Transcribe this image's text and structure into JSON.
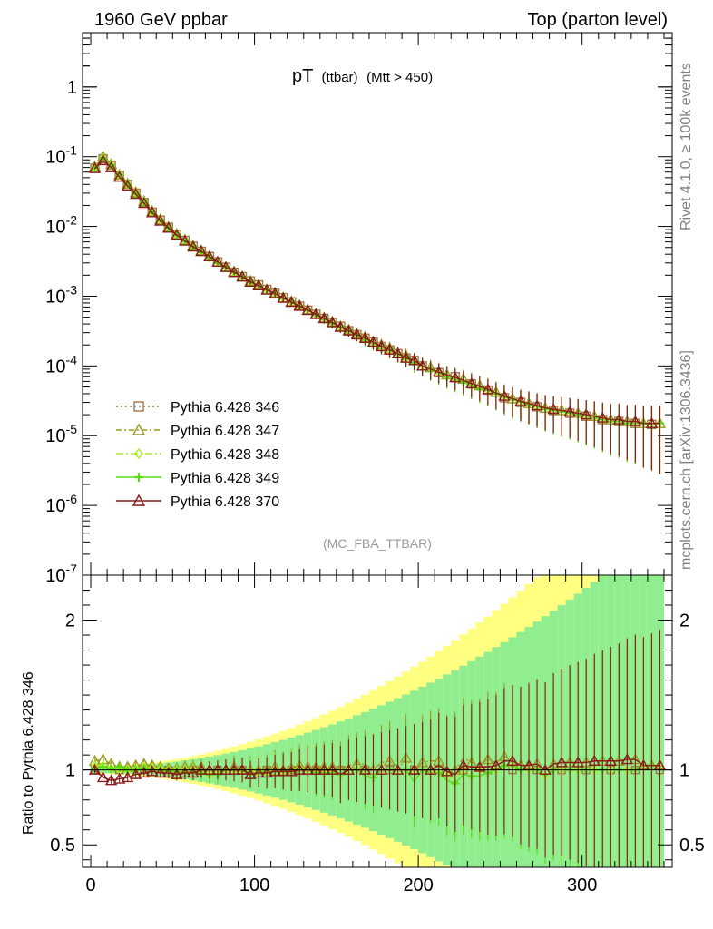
{
  "header": {
    "left": "1960 GeV ppbar",
    "right": "Top (parton level)"
  },
  "title": {
    "main": "pT",
    "sub": "(ttbar)",
    "cut": "(Mtt > 450)"
  },
  "side_labels": {
    "top": "Rivet 4.1.0, ≥ 100k events",
    "bottom": "mcplots.cern.ch [arXiv:1306.3436]"
  },
  "watermark": "(MC_FBA_TTBAR)",
  "ratio_ylabel": "Ratio to Pythia 6.428 346",
  "colors": {
    "s346": "#a0784a",
    "s347": "#9a9a22",
    "s348": "#aaee22",
    "s349": "#55dd11",
    "s370": "#8b1a1a",
    "band_yellow": "#ffff80",
    "band_green": "#90ee90"
  },
  "chart_data": [
    {
      "type": "line",
      "yscale": "log",
      "xlim": [
        -5,
        355
      ],
      "ylim": [
        1e-07,
        6
      ],
      "y_tick_labels": [
        "10^-7",
        "10^-6",
        "10^-5",
        "10^-4",
        "10^-3",
        "10^-2",
        "10^-1",
        "1"
      ],
      "x": [
        2.5,
        7.5,
        12.5,
        17.5,
        22.5,
        27.5,
        32.5,
        37.5,
        42.5,
        47.5,
        52.5,
        57.5,
        62.5,
        67.5,
        72.5,
        77.5,
        82.5,
        87.5,
        92.5,
        97.5,
        102.5,
        107.5,
        112.5,
        117.5,
        122.5,
        127.5,
        132.5,
        137.5,
        142.5,
        147.5,
        152.5,
        157.5,
        162.5,
        167.5,
        172.5,
        177.5,
        182.5,
        187.5,
        192.5,
        197.5,
        202.5,
        207.5,
        212.5,
        217.5,
        222.5,
        227.5,
        232.5,
        237.5,
        242.5,
        247.5,
        252.5,
        257.5,
        262.5,
        267.5,
        272.5,
        277.5,
        282.5,
        287.5,
        292.5,
        297.5,
        302.5,
        307.5,
        312.5,
        317.5,
        322.5,
        327.5,
        332.5,
        337.5,
        342.5,
        347.5
      ],
      "series": [
        {
          "name": "Pythia 6.428 346",
          "marker": "square",
          "dash": "2,3",
          "values": [
            0.068,
            0.093,
            0.075,
            0.054,
            0.04,
            0.03,
            0.022,
            0.016,
            0.0123,
            0.0097,
            0.0077,
            0.0063,
            0.0052,
            0.0044,
            0.0037,
            0.0031,
            0.0026,
            0.0022,
            0.0019,
            0.00165,
            0.00145,
            0.00125,
            0.0011,
            0.00095,
            0.00083,
            0.00072,
            0.00063,
            0.00055,
            0.00048,
            0.00042,
            0.00037,
            0.00032,
            0.00028,
            0.00025,
            0.00022,
            0.00019,
            0.00017,
            0.00015,
            0.00013,
            0.00012,
            0.0001,
            9e-05,
            8e-05,
            7.5e-05,
            7e-05,
            6e-05,
            5.5e-05,
            5e-05,
            4.5e-05,
            4e-05,
            3.5e-05,
            3.2e-05,
            3e-05,
            2.8e-05,
            2.6e-05,
            2.5e-05,
            2.3e-05,
            2.2e-05,
            2.1e-05,
            2e-05,
            1.9e-05,
            1.8e-05,
            1.7e-05,
            1.6e-05,
            1.6e-05,
            1.5e-05,
            1.5e-05,
            1.45e-05,
            1.45e-05,
            1.45e-05
          ]
        },
        {
          "name": "Pythia 6.428 347",
          "marker": "triangle",
          "dash": "6,3,2,3",
          "values": [
            0.072,
            0.1,
            0.078,
            0.055,
            0.041,
            0.031,
            0.023,
            0.0165,
            0.0126,
            0.0098,
            0.0078,
            0.0064,
            0.0053,
            0.0045,
            0.0037,
            0.0031,
            0.0026,
            0.00225,
            0.0019,
            0.00165,
            0.00145,
            0.00125,
            0.00112,
            0.00095,
            0.00084,
            0.00074,
            0.00064,
            0.00056,
            0.00049,
            0.00043,
            0.00037,
            0.00033,
            0.00029,
            0.00026,
            0.00022,
            0.0002,
            0.00018,
            0.00015,
            0.00014,
            0.00012,
            0.000105,
            9.5e-05,
            8.5e-05,
            7.5e-05,
            7e-05,
            6.5e-05,
            5.8e-05,
            5.2e-05,
            4.8e-05,
            4.2e-05,
            3.8e-05,
            3.4e-05,
            3.1e-05,
            2.9e-05,
            2.7e-05,
            2.5e-05,
            2.4e-05,
            2.3e-05,
            2.2e-05,
            2.1e-05,
            2e-05,
            1.9e-05,
            1.8e-05,
            1.7e-05,
            1.7e-05,
            1.6e-05,
            1.6e-05,
            1.5e-05,
            1.5e-05,
            1.5e-05
          ]
        },
        {
          "name": "Pythia 6.428 348",
          "marker": "diamond",
          "dash": "8,3,2,3",
          "values": [
            0.07,
            0.096,
            0.076,
            0.054,
            0.04,
            0.03,
            0.0225,
            0.0162,
            0.0124,
            0.0097,
            0.0077,
            0.0063,
            0.0052,
            0.0044,
            0.0036,
            0.0031,
            0.0026,
            0.0022,
            0.0019,
            0.00163,
            0.00143,
            0.00124,
            0.0011,
            0.00094,
            0.00083,
            0.00073,
            0.00063,
            0.00055,
            0.00048,
            0.00042,
            0.00036,
            0.00032,
            0.00028,
            0.00025,
            0.00022,
            0.00019,
            0.00017,
            0.00015,
            0.00013,
            0.00012,
            0.0001,
            9e-05,
            8e-05,
            7.2e-05,
            6.6e-05,
            6e-05,
            5.5e-05,
            5e-05,
            4.5e-05,
            4e-05,
            3.6e-05,
            3.3e-05,
            3e-05,
            2.8e-05,
            2.6e-05,
            2.4e-05,
            2.3e-05,
            2.2e-05,
            2.1e-05,
            2e-05,
            1.9e-05,
            1.8e-05,
            1.7e-05,
            1.6e-05,
            1.6e-05,
            1.5e-05,
            1.5e-05,
            1.5e-05,
            1.5e-05,
            1.5e-05
          ]
        },
        {
          "name": "Pythia 6.428 349",
          "marker": "plus",
          "dash": "",
          "values": [
            0.069,
            0.095,
            0.076,
            0.055,
            0.04,
            0.03,
            0.0222,
            0.016,
            0.0123,
            0.0096,
            0.0076,
            0.0062,
            0.0051,
            0.0043,
            0.0036,
            0.003,
            0.0026,
            0.0022,
            0.0019,
            0.00162,
            0.00142,
            0.00124,
            0.00109,
            0.00094,
            0.00082,
            0.00072,
            0.00063,
            0.00054,
            0.00047,
            0.00041,
            0.00036,
            0.00032,
            0.00028,
            0.00024,
            0.00021,
            0.00019,
            0.00017,
            0.00015,
            0.00013,
            0.00011,
            0.0001,
            8.8e-05,
            7.8e-05,
            7e-05,
            6.4e-05,
            5.8e-05,
            5.3e-05,
            4.8e-05,
            4.4e-05,
            4e-05,
            3.6e-05,
            3.3e-05,
            3e-05,
            2.8e-05,
            2.6e-05,
            2.4e-05,
            2.3e-05,
            2.2e-05,
            2.1e-05,
            2e-05,
            1.9e-05,
            1.8e-05,
            1.7e-05,
            1.6e-05,
            1.6e-05,
            1.5e-05,
            1.5e-05,
            1.5e-05,
            1.5e-05,
            1.5e-05
          ]
        },
        {
          "name": "Pythia 6.428 370",
          "marker": "triangle",
          "dash": "",
          "values": [
            0.068,
            0.088,
            0.07,
            0.051,
            0.038,
            0.029,
            0.0215,
            0.0158,
            0.012,
            0.0095,
            0.0075,
            0.0062,
            0.0051,
            0.0044,
            0.0037,
            0.0031,
            0.0026,
            0.0022,
            0.0019,
            0.0016,
            0.00142,
            0.00123,
            0.00109,
            0.00094,
            0.00082,
            0.00072,
            0.00063,
            0.00055,
            0.00048,
            0.00042,
            0.00036,
            0.00032,
            0.00028,
            0.00025,
            0.00022,
            0.00019,
            0.00017,
            0.00015,
            0.00013,
            0.00012,
            0.0001,
            9e-05,
            8.2e-05,
            7.4e-05,
            6.8e-05,
            6.2e-05,
            5.6e-05,
            5.1e-05,
            4.6e-05,
            4.1e-05,
            3.7e-05,
            3.4e-05,
            3.1e-05,
            2.9e-05,
            2.7e-05,
            2.5e-05,
            2.4e-05,
            2.3e-05,
            2.2e-05,
            2.1e-05,
            2e-05,
            1.9e-05,
            1.8e-05,
            1.7e-05,
            1.7e-05,
            1.6e-05,
            1.6e-05,
            1.5e-05,
            1.5e-05,
            1.5e-05
          ]
        }
      ]
    },
    {
      "type": "line",
      "ylabel": "Ratio to Pythia 6.428 346",
      "xlim": [
        -5,
        355
      ],
      "ylim": [
        0.35,
        2.3
      ],
      "x_tick_labels": [
        "0",
        "100",
        "200",
        "300"
      ],
      "y_tick_labels": [
        "0.5",
        "1",
        "2"
      ],
      "reference": 1,
      "x": [
        2.5,
        7.5,
        12.5,
        17.5,
        22.5,
        27.5,
        32.5,
        37.5,
        42.5,
        47.5,
        52.5,
        57.5,
        62.5,
        67.5,
        72.5,
        77.5,
        82.5,
        87.5,
        92.5,
        97.5,
        102.5,
        107.5,
        112.5,
        117.5,
        122.5,
        127.5,
        132.5,
        137.5,
        142.5,
        147.5,
        152.5,
        157.5,
        162.5,
        167.5,
        172.5,
        177.5,
        182.5,
        187.5,
        192.5,
        197.5,
        202.5,
        207.5,
        212.5,
        217.5,
        222.5,
        227.5,
        232.5,
        237.5,
        242.5,
        247.5,
        252.5,
        257.5,
        262.5,
        267.5,
        272.5,
        277.5,
        282.5,
        287.5,
        292.5,
        297.5,
        302.5,
        307.5,
        312.5,
        317.5,
        322.5,
        327.5,
        332.5,
        337.5,
        342.5,
        347.5
      ],
      "series": [
        {
          "name": "Pythia 6.428 347",
          "values": [
            1.06,
            1.07,
            1.04,
            1.02,
            1.02,
            1.03,
            1.04,
            1.03,
            1.02,
            1.01,
            1.01,
            1.02,
            1.02,
            1.02,
            1.0,
            1.0,
            1.0,
            1.02,
            1.0,
            1.0,
            1.0,
            1.0,
            1.02,
            1.0,
            1.01,
            1.03,
            1.02,
            1.02,
            1.02,
            1.02,
            1.0,
            1.03,
            1.04,
            1.04,
            1.0,
            1.05,
            1.06,
            1.0,
            1.08,
            1.0,
            1.05,
            1.06,
            1.06,
            1.0,
            1.0,
            1.08,
            1.05,
            1.04,
            1.07,
            1.05,
            1.09,
            1.06,
            1.03,
            1.04,
            1.04,
            1.0,
            1.04,
            1.05,
            1.05,
            1.05,
            1.05,
            1.06,
            1.06,
            1.06,
            1.06,
            1.07,
            1.07,
            1.03,
            1.03,
            1.03
          ]
        },
        {
          "name": "Pythia 6.428 348",
          "values": [
            1.03,
            1.03,
            1.01,
            1.0,
            1.0,
            1.0,
            1.02,
            1.01,
            1.01,
            1.0,
            1.0,
            1.0,
            1.0,
            1.0,
            0.97,
            1.0,
            1.0,
            1.0,
            1.0,
            0.99,
            0.99,
            0.99,
            1.0,
            0.99,
            1.0,
            1.01,
            1.0,
            1.0,
            1.0,
            1.0,
            0.97,
            1.0,
            1.0,
            1.0,
            1.0,
            1.0,
            1.0,
            1.0,
            1.0,
            1.0,
            1.0,
            1.0,
            1.0,
            0.96,
            0.94,
            1.0,
            1.0,
            1.0,
            1.0,
            1.0,
            1.03,
            1.03,
            1.0,
            1.0,
            1.0,
            0.96,
            1.0,
            1.0,
            1.0,
            1.0,
            1.0,
            1.0,
            1.0,
            1.0,
            1.0,
            1.0,
            1.0,
            1.03,
            1.03,
            1.03
          ]
        },
        {
          "name": "Pythia 6.428 349",
          "values": [
            1.01,
            1.02,
            1.01,
            1.02,
            1.0,
            1.0,
            1.01,
            1.0,
            1.0,
            0.99,
            0.99,
            0.98,
            0.98,
            0.98,
            0.97,
            0.97,
            1.0,
            1.0,
            1.0,
            0.98,
            0.98,
            0.99,
            0.99,
            0.99,
            0.99,
            1.0,
            1.0,
            0.98,
            0.98,
            0.98,
            0.97,
            1.0,
            1.0,
            0.96,
            0.95,
            1.0,
            1.0,
            1.0,
            1.0,
            0.92,
            1.0,
            0.98,
            0.98,
            0.93,
            0.91,
            0.97,
            0.96,
            0.96,
            0.98,
            1.0,
            1.03,
            1.03,
            1.0,
            1.0,
            1.0,
            0.96,
            1.0,
            1.0,
            1.0,
            1.0,
            1.0,
            1.0,
            1.0,
            1.0,
            1.0,
            1.0,
            1.0,
            1.03,
            1.03,
            1.03
          ]
        },
        {
          "name": "Pythia 6.428 370",
          "values": [
            1.0,
            0.95,
            0.93,
            0.94,
            0.95,
            0.97,
            0.98,
            0.99,
            0.98,
            0.98,
            0.97,
            0.98,
            0.98,
            1.0,
            1.0,
            1.0,
            1.0,
            1.0,
            1.0,
            0.97,
            0.98,
            0.98,
            0.99,
            0.99,
            0.99,
            1.0,
            1.0,
            1.0,
            1.0,
            1.0,
            0.97,
            1.0,
            1.0,
            1.0,
            1.0,
            1.0,
            1.0,
            1.0,
            1.0,
            1.0,
            1.0,
            1.0,
            1.03,
            0.99,
            0.97,
            1.03,
            1.02,
            1.02,
            1.02,
            1.03,
            1.06,
            1.06,
            1.03,
            1.03,
            1.04,
            1.0,
            1.04,
            1.05,
            1.05,
            1.05,
            1.05,
            1.06,
            1.06,
            1.06,
            1.06,
            1.07,
            1.07,
            1.03,
            1.03,
            1.03
          ]
        }
      ]
    }
  ]
}
